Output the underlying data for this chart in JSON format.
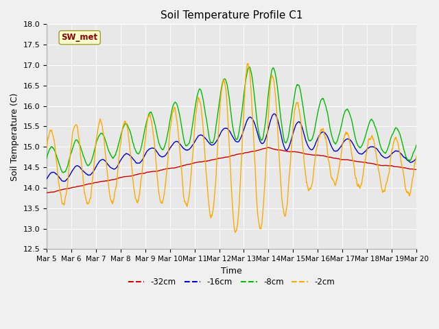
{
  "title": "Soil Temperature Profile C1",
  "xlabel": "Time",
  "ylabel": "Soil Temperature (C)",
  "ylim": [
    12.5,
    18.0
  ],
  "yticks": [
    12.5,
    13.0,
    13.5,
    14.0,
    14.5,
    15.0,
    15.5,
    16.0,
    16.5,
    17.0,
    17.5,
    18.0
  ],
  "colors": {
    "-32cm": "#cc0000",
    "-16cm": "#0000cc",
    "-8cm": "#00bb00",
    "-2cm": "#ffaa00"
  },
  "annotation_text": "SW_met",
  "annotation_box_color": "#ffffcc",
  "annotation_text_color": "#880000",
  "annotation_border_color": "#999933",
  "plot_bg_color": "#e8e8e8",
  "fig_bg_color": "#f0f0f0",
  "grid_color": "#ffffff",
  "n_points": 1500,
  "x_start": 5.0,
  "x_end": 20.0,
  "xtick_positions": [
    5,
    6,
    7,
    8,
    9,
    10,
    11,
    12,
    13,
    14,
    15,
    16,
    17,
    18,
    19,
    20
  ],
  "xtick_labels": [
    "Mar 5",
    "Mar 6",
    "Mar 7",
    "Mar 8",
    "Mar 9",
    "Mar 10",
    "Mar 11",
    "Mar 12",
    "Mar 13",
    "Mar 14",
    "Mar 15",
    "Mar 16",
    "Mar 17",
    "Mar 18",
    "Mar 19",
    "Mar 20"
  ]
}
